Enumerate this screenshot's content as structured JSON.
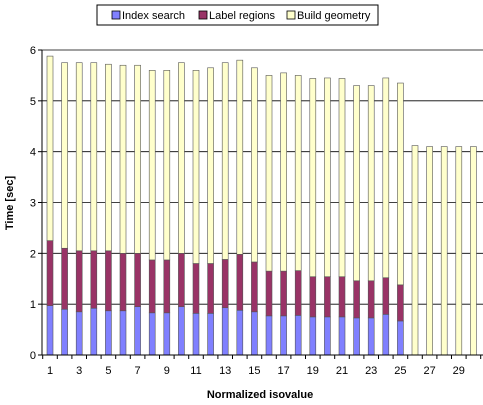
{
  "chart_data": {
    "type": "bar",
    "stacked": true,
    "xlabel": "Normalized isovalue",
    "ylabel": "Time [sec]",
    "ylim": [
      0,
      6
    ],
    "yticks": [
      "0",
      "1",
      "2",
      "3",
      "4",
      "5",
      "6"
    ],
    "grid": "horizontal",
    "legend_position": "top",
    "categories": [
      "1",
      "2",
      "3",
      "4",
      "5",
      "6",
      "7",
      "8",
      "9",
      "10",
      "11",
      "12",
      "13",
      "14",
      "15",
      "16",
      "17",
      "18",
      "19",
      "20",
      "21",
      "22",
      "23",
      "24",
      "25",
      "26",
      "27",
      "28",
      "29",
      "30"
    ],
    "xtick_labels": [
      "1",
      "3",
      "5",
      "7",
      "9",
      "11",
      "13",
      "15",
      "17",
      "19",
      "21",
      "23",
      "25",
      "27",
      "29"
    ],
    "series": [
      {
        "name": "Index search",
        "color": "#8080ff",
        "values": [
          0.97,
          0.9,
          0.85,
          0.92,
          0.87,
          0.87,
          0.95,
          0.83,
          0.83,
          0.95,
          0.82,
          0.82,
          0.93,
          0.88,
          0.85,
          0.77,
          0.77,
          0.78,
          0.75,
          0.75,
          0.75,
          0.73,
          0.73,
          0.8,
          0.67,
          0,
          0,
          0,
          0,
          0
        ]
      },
      {
        "name": "Label regions",
        "color": "#993366",
        "values": [
          1.28,
          1.2,
          1.2,
          1.13,
          1.18,
          1.13,
          1.05,
          1.04,
          1.04,
          1.05,
          0.98,
          0.98,
          0.95,
          1.1,
          0.98,
          0.88,
          0.88,
          0.88,
          0.79,
          0.79,
          0.79,
          0.73,
          0.73,
          0.72,
          0.71,
          0,
          0,
          0,
          0,
          0
        ]
      },
      {
        "name": "Build geometry",
        "color": "#ffffcc",
        "values": [
          3.63,
          3.65,
          3.7,
          3.7,
          3.67,
          3.7,
          3.7,
          3.73,
          3.73,
          3.75,
          3.8,
          3.85,
          3.87,
          3.82,
          3.82,
          3.85,
          3.9,
          3.84,
          3.9,
          3.91,
          3.9,
          3.84,
          3.84,
          3.93,
          3.97,
          4.12,
          4.1,
          4.1,
          4.1,
          4.1
        ]
      }
    ]
  }
}
